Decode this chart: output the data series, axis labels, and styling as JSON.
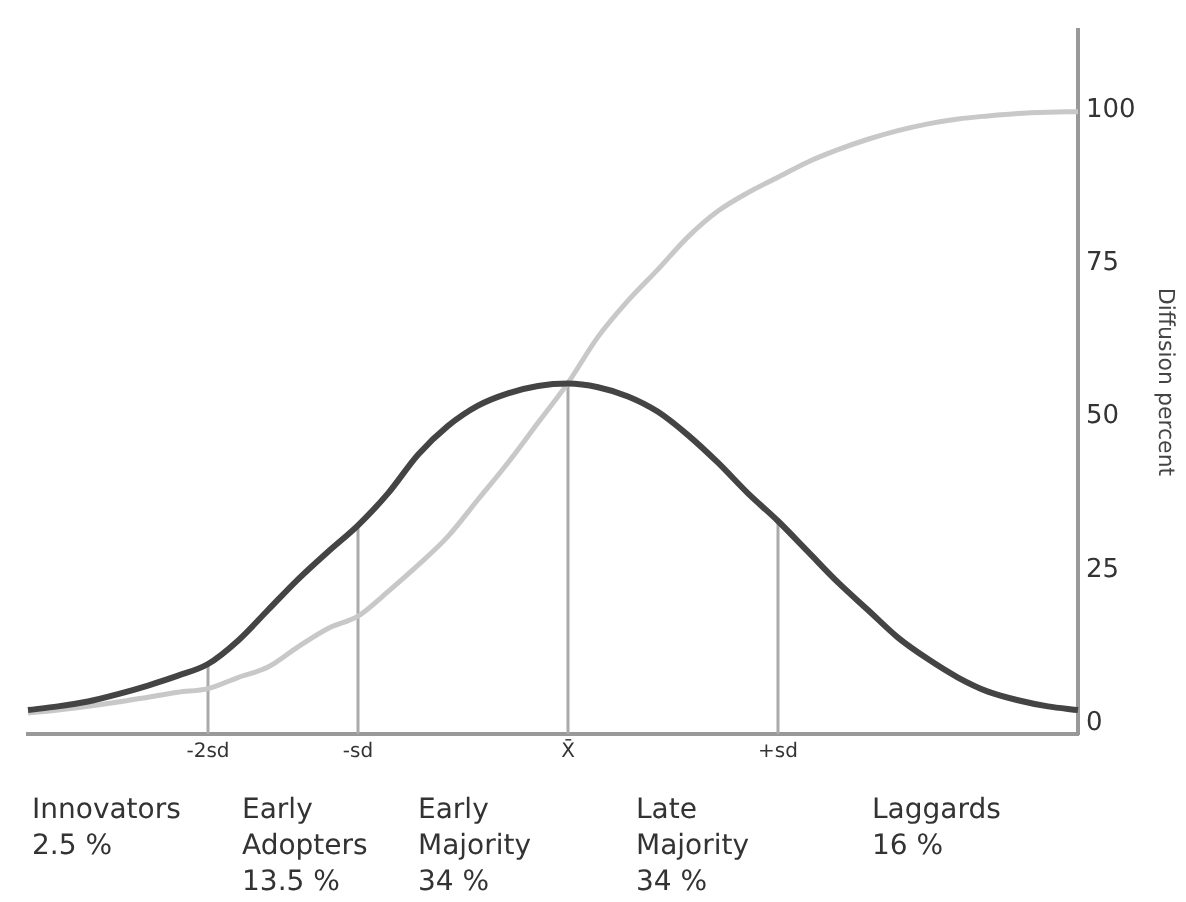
{
  "chart_data": {
    "type": "line",
    "ylabel": "Diffusion percent",
    "categories": [
      null,
      null,
      null,
      null,
      null,
      null,
      "-2sd",
      null,
      null,
      null,
      null,
      "-sd",
      null,
      null,
      null,
      null,
      null,
      null,
      "X̄",
      null,
      null,
      null,
      null,
      null,
      null,
      "+sd",
      null,
      null,
      null,
      null,
      null,
      null,
      null,
      null,
      null,
      null
    ],
    "ylim": [
      -1.7,
      113
    ],
    "yticks": [
      0,
      25,
      50,
      75,
      100
    ],
    "grid": false,
    "legend": false,
    "marker": "none",
    "series": [
      {
        "color": "#444444",
        "values": [
          2.2,
          2.8,
          3.6,
          4.8,
          6.2,
          7.8,
          9.7,
          13.5,
          18.5,
          23.5,
          28,
          32.3,
          37.5,
          43.8,
          48.5,
          51.8,
          53.8,
          55,
          55.4,
          54.8,
          53.3,
          50.8,
          47,
          42.5,
          37.5,
          33,
          28,
          23,
          18.5,
          14,
          10.5,
          7.5,
          5.2,
          3.8,
          2.8,
          2.2
        ]
      },
      {
        "color": "#c8c8c8",
        "values": [
          1.7,
          2.2,
          2.8,
          3.5,
          4.3,
          5.1,
          5.7,
          7.5,
          9.2,
          12.5,
          15.5,
          17.5,
          21.5,
          25.8,
          30.5,
          36.5,
          42.5,
          49,
          55.5,
          63,
          68.9,
          74,
          79.3,
          83.5,
          86.5,
          89,
          91.5,
          93.5,
          95.2,
          96.6,
          97.7,
          98.5,
          99,
          99.4,
          99.6,
          99.7
        ]
      }
    ],
    "ref_lines": [
      {
        "axis": "x",
        "value": "-2sd",
        "color": "#aaaaaa"
      },
      {
        "axis": "x",
        "value": "-sd",
        "color": "#aaaaaa"
      },
      {
        "axis": "x",
        "value": "X̄",
        "color": "#aaaaaa"
      },
      {
        "axis": "x",
        "value": "+sd",
        "color": "#aaaaaa"
      }
    ],
    "annotations": [
      "Innovators\n2.5 %",
      "Early\nAdopters\n13.5 %",
      "Early\nMajority\n34 %",
      "Late\nMajority\n34 %",
      "Laggards\n16 %"
    ]
  }
}
